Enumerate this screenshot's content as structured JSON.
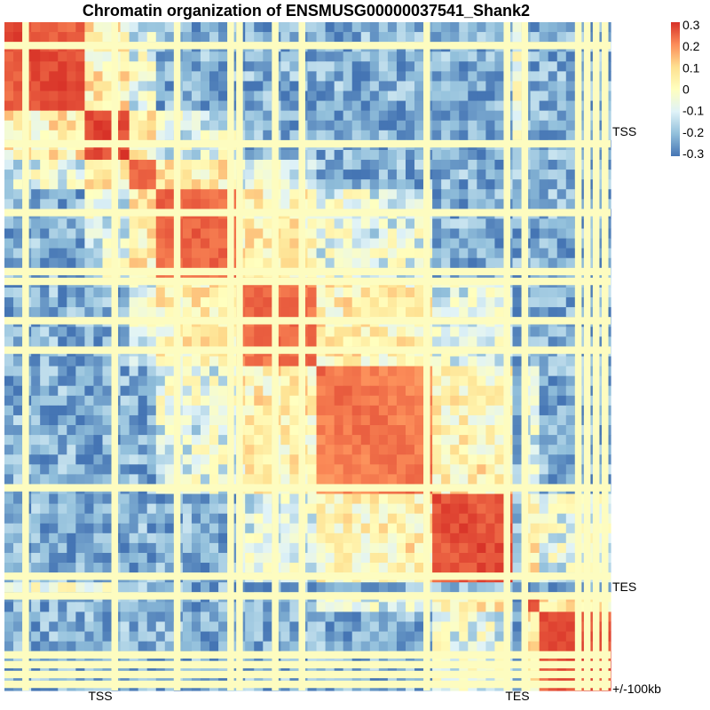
{
  "chart_data": {
    "type": "heatmap",
    "title": "Chromatin organization of ENSMUSG00000037541_Shank2",
    "n_bins": 68,
    "row_labels": {
      "TSS": "TSS",
      "TES": "TES",
      "flank": "+/-100kb"
    },
    "col_labels": {
      "TSS": "TSS",
      "TES": "TES"
    },
    "legend": {
      "ticks": [
        "0.3",
        "0.2",
        "0.1",
        "0",
        "-0.1",
        "-0.2",
        "-0.3"
      ],
      "range": [
        -0.3,
        0.3
      ],
      "colors": [
        "#4575b4",
        "#91bfdb",
        "#e0f3f8",
        "#ffffbf",
        "#fee090",
        "#fc8d59",
        "#d73027"
      ]
    },
    "missing_color": "#fdfcc0",
    "missing_bins": [
      2,
      12,
      19,
      25,
      26,
      30,
      33,
      47,
      56,
      58,
      64,
      65,
      66,
      67
    ],
    "blocks": [
      {
        "from": 0,
        "to": 9,
        "strength": 0.3
      },
      {
        "from": 9,
        "to": 14,
        "strength": 0.3
      },
      {
        "from": 14,
        "to": 17,
        "strength": 0.27
      },
      {
        "from": 17,
        "to": 26,
        "strength": 0.27
      },
      {
        "from": 26,
        "to": 35,
        "strength": 0.27
      },
      {
        "from": 35,
        "to": 48,
        "strength": 0.26
      },
      {
        "from": 48,
        "to": 57,
        "strength": 0.3
      },
      {
        "from": 58,
        "to": 60,
        "strength": 0.3
      },
      {
        "from": 60,
        "to": 68,
        "strength": 0.3
      }
    ]
  }
}
